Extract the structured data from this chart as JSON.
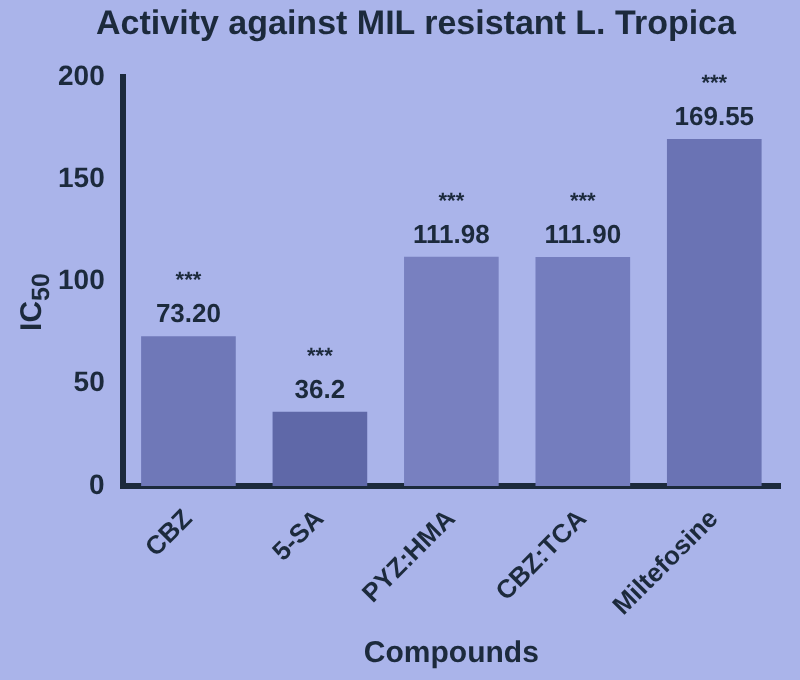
{
  "chart_data": {
    "type": "bar",
    "title": "Activity against MIL resistant L. Tropica",
    "xlabel": "Compounds",
    "ylabel": "IC$_{50}$",
    "categories": [
      "CBZ",
      "5-SA",
      "PYZ:HMA",
      "CBZ:TCA",
      "Miltefosine"
    ],
    "values": [
      73.2,
      36.2,
      111.98,
      111.9,
      169.55
    ],
    "value_labels": [
      "73.20",
      "36.2",
      "111.98",
      "111.90",
      "169.55"
    ],
    "colors": [
      "#6f78b8",
      "#5f68a8",
      "#7880c0",
      "#747dbe",
      "#6a73b4"
    ],
    "annotations": [
      {
        "text": "***",
        "x": "CBZ",
        "y": 73.2
      },
      {
        "text": "***",
        "x": "5-SA",
        "y": 36.2
      },
      {
        "text": "***",
        "x": "PYZ:HMA",
        "y": 111.98
      },
      {
        "text": "***",
        "x": "CBZ:TCA",
        "y": 111.9
      },
      {
        "text": "***",
        "x": "Miltefosine",
        "y": 169.55
      }
    ],
    "ylim": [
      0,
      200
    ],
    "yticks": [
      0,
      50,
      100,
      150,
      200
    ],
    "grid": false,
    "legend": false
  }
}
